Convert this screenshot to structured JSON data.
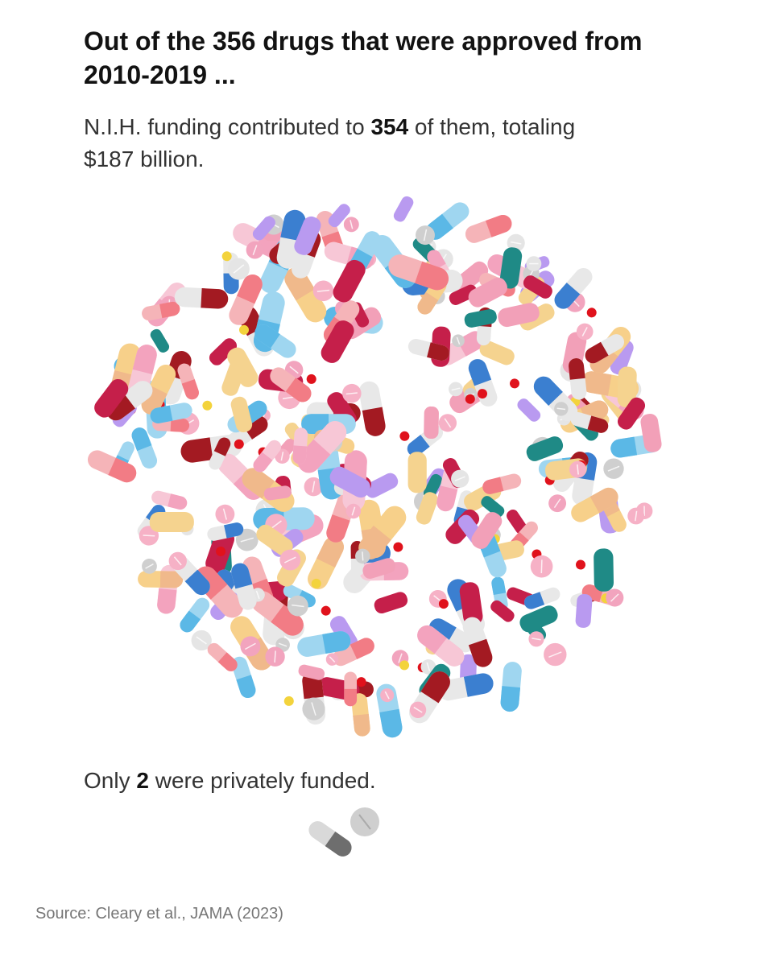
{
  "header": {
    "title": "Out of the 356 drugs that were approved from 2010-2019 ...",
    "subtitle": {
      "before": "N.I.H. funding contributed to ",
      "highlight": "354",
      "after": " of them, totaling $187 billion."
    }
  },
  "private": {
    "before": "Only ",
    "highlight": "2",
    "after": " were privately funded."
  },
  "source": "Source: Cleary et al., JAMA (2023)"
}
